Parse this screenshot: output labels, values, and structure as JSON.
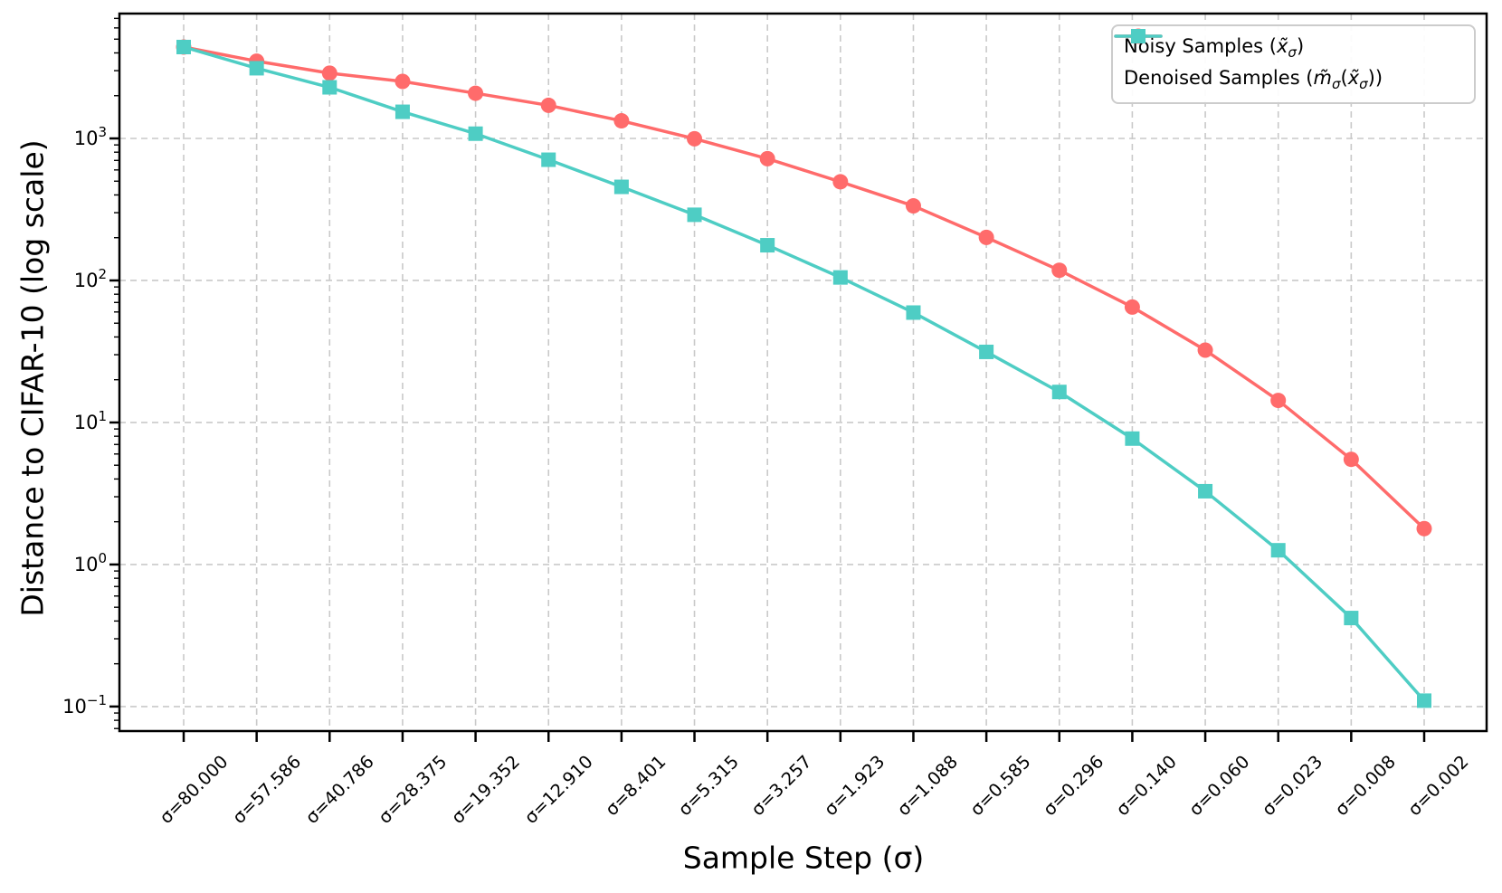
{
  "chart_data": {
    "type": "line",
    "title": "",
    "xlabel": "Sample Step (σ)",
    "ylabel": "Distance to CIFAR-10 (log scale)",
    "x_tick_labels": [
      "σ=80.000",
      "σ=57.586",
      "σ=40.786",
      "σ=28.375",
      "σ=19.352",
      "σ=12.910",
      "σ=8.401",
      "σ=5.315",
      "σ=3.257",
      "σ=1.923",
      "σ=1.088",
      "σ=0.585",
      "σ=0.296",
      "σ=0.140",
      "σ=0.060",
      "σ=0.023",
      "σ=0.008",
      "σ=0.002"
    ],
    "sigma_values": [
      80.0,
      57.586,
      40.786,
      28.375,
      19.352,
      12.91,
      8.401,
      5.315,
      3.257,
      1.923,
      1.088,
      0.585,
      0.296,
      0.14,
      0.06,
      0.023,
      0.008,
      0.002
    ],
    "y_scale": "log",
    "ylim": [
      0.0672,
      7570
    ],
    "y_major_ticks": [
      1000,
      100,
      10,
      1,
      0.1
    ],
    "grid": {
      "show": true,
      "style": "dashed",
      "color": "#c9c9c9"
    },
    "legend_position": "upper-right",
    "series": [
      {
        "key": "noisy",
        "name": "Noisy Samples (x̃σ)",
        "marker": "circle",
        "color": "#ff6b6b",
        "label_parts": [
          {
            "t": "Noisy Samples ("
          },
          {
            "t": "x̃",
            "math": true
          },
          {
            "t": "σ",
            "math": true,
            "sub": true
          },
          {
            "t": ")"
          }
        ],
        "values": [
          4400,
          3500,
          2880,
          2520,
          2080,
          1710,
          1330,
          995,
          720,
          495,
          335,
          201,
          118,
          65,
          32.3,
          14.3,
          5.5,
          1.79
        ]
      },
      {
        "key": "denoised",
        "name": "Denoised Samples (m̃σ(x̃σ))",
        "marker": "square",
        "color": "#4ecdc4",
        "label_parts": [
          {
            "t": "Denoised Samples ("
          },
          {
            "t": "m̃",
            "math": true
          },
          {
            "t": "σ",
            "math": true,
            "sub": true
          },
          {
            "t": "("
          },
          {
            "t": "x̃",
            "math": true
          },
          {
            "t": "σ",
            "math": true,
            "sub": true
          },
          {
            "t": "))"
          }
        ],
        "values": [
          4400,
          3120,
          2290,
          1540,
          1080,
          708,
          456,
          290,
          177,
          105,
          59.4,
          31.4,
          16.4,
          7.7,
          3.28,
          1.26,
          0.42,
          0.11
        ]
      }
    ]
  },
  "colors": {
    "background": "#ffffff",
    "spine": "#000000",
    "text": "#000000",
    "grid": "#c9c9c9",
    "noisy": "#ff6b6b",
    "denoised": "#4ecdc4",
    "legend_border": "#cccccc"
  }
}
